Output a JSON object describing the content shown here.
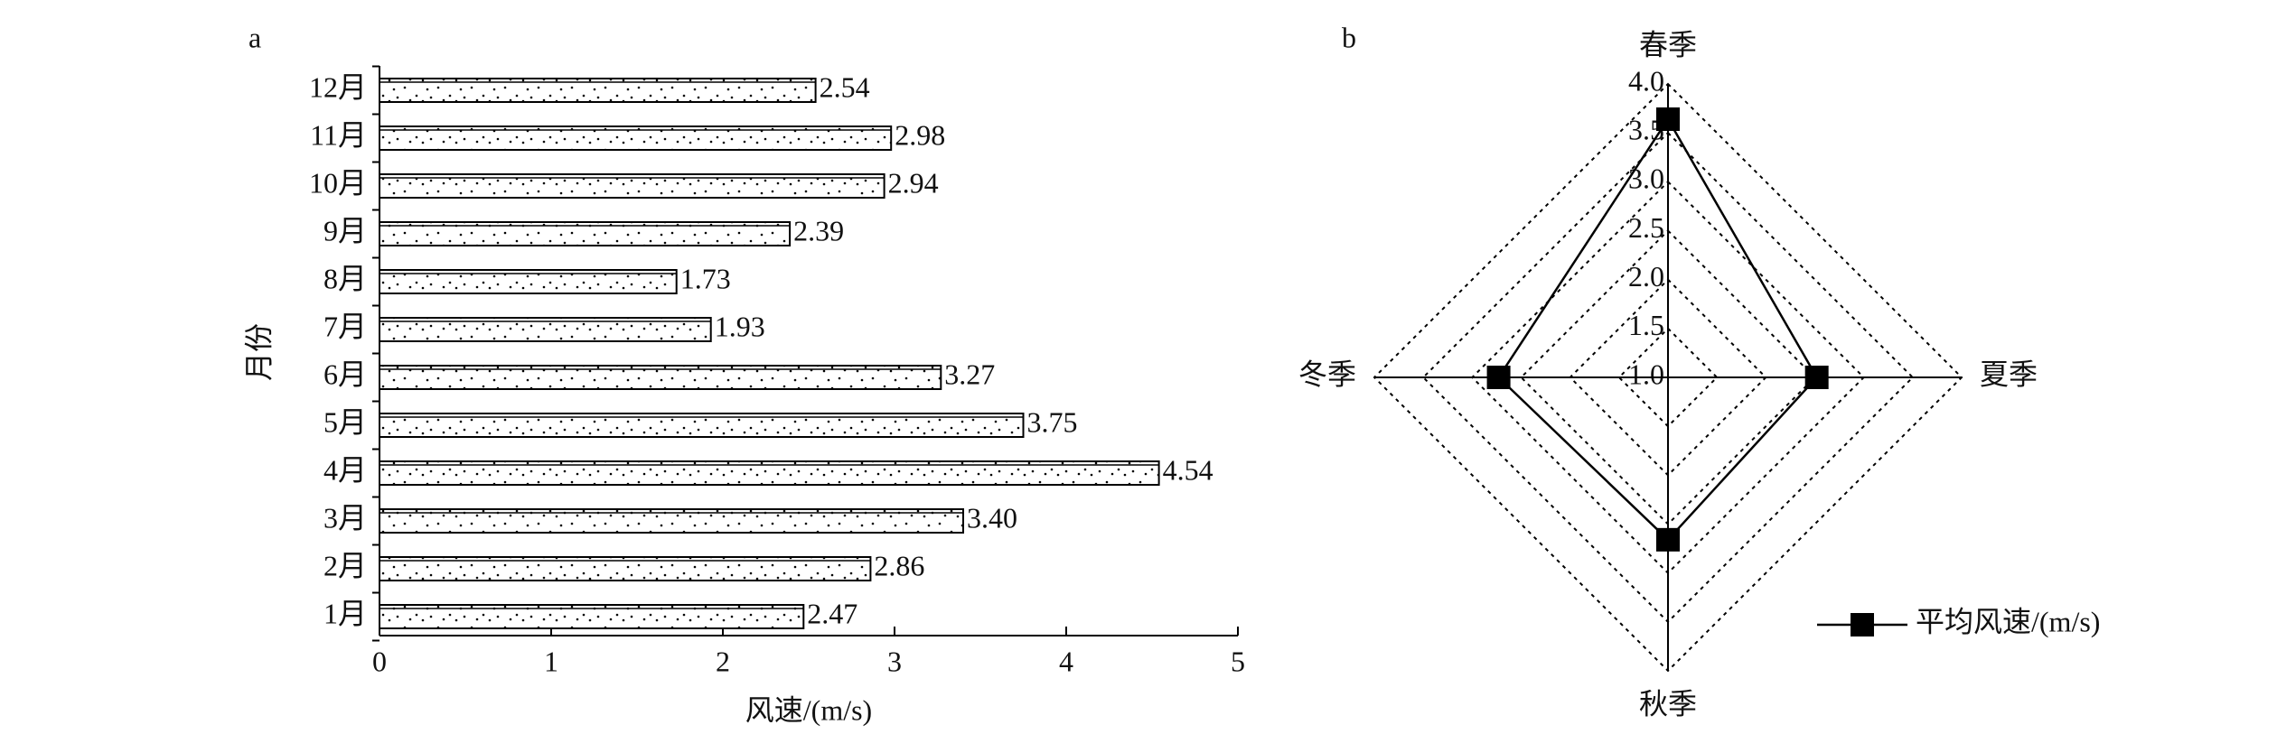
{
  "chart_data": [
    {
      "type": "bar",
      "panel": "a",
      "x_label": "风速/(m/s)",
      "y_label": "月份",
      "categories": [
        "1月",
        "2月",
        "3月",
        "4月",
        "5月",
        "6月",
        "7月",
        "8月",
        "9月",
        "10月",
        "11月",
        "12月"
      ],
      "values": [
        2.47,
        2.86,
        3.4,
        4.54,
        3.75,
        3.27,
        1.93,
        1.73,
        2.39,
        2.94,
        2.98,
        2.54
      ],
      "value_labels": [
        "2.47",
        "2.86",
        "3.40",
        "4.54",
        "3.75",
        "3.27",
        "1.93",
        "1.73",
        "2.39",
        "2.94",
        "2.98",
        "2.54"
      ],
      "xlim": [
        0,
        5
      ],
      "xticks": [
        0,
        1,
        2,
        3,
        4,
        5
      ],
      "color": "#000000"
    },
    {
      "type": "radar",
      "panel": "b",
      "categories": [
        "春季",
        "夏季",
        "秋季",
        "冬季"
      ],
      "series": [
        {
          "name": "平均风速/(m/s)",
          "color": "#000000",
          "values": [
            3.64,
            2.52,
            2.66,
            2.73
          ]
        }
      ],
      "rlim": [
        1,
        4
      ],
      "rticks": [
        {
          "value": 1,
          "label": "1.0"
        },
        {
          "value": 1.5,
          "label": "1.5"
        },
        {
          "value": 2,
          "label": "2.0"
        },
        {
          "value": 2.5,
          "label": "2.5"
        },
        {
          "value": 3,
          "label": "3.0"
        },
        {
          "value": 3.5,
          "label": "3.5"
        },
        {
          "value": 4,
          "label": "4.0"
        }
      ]
    }
  ]
}
